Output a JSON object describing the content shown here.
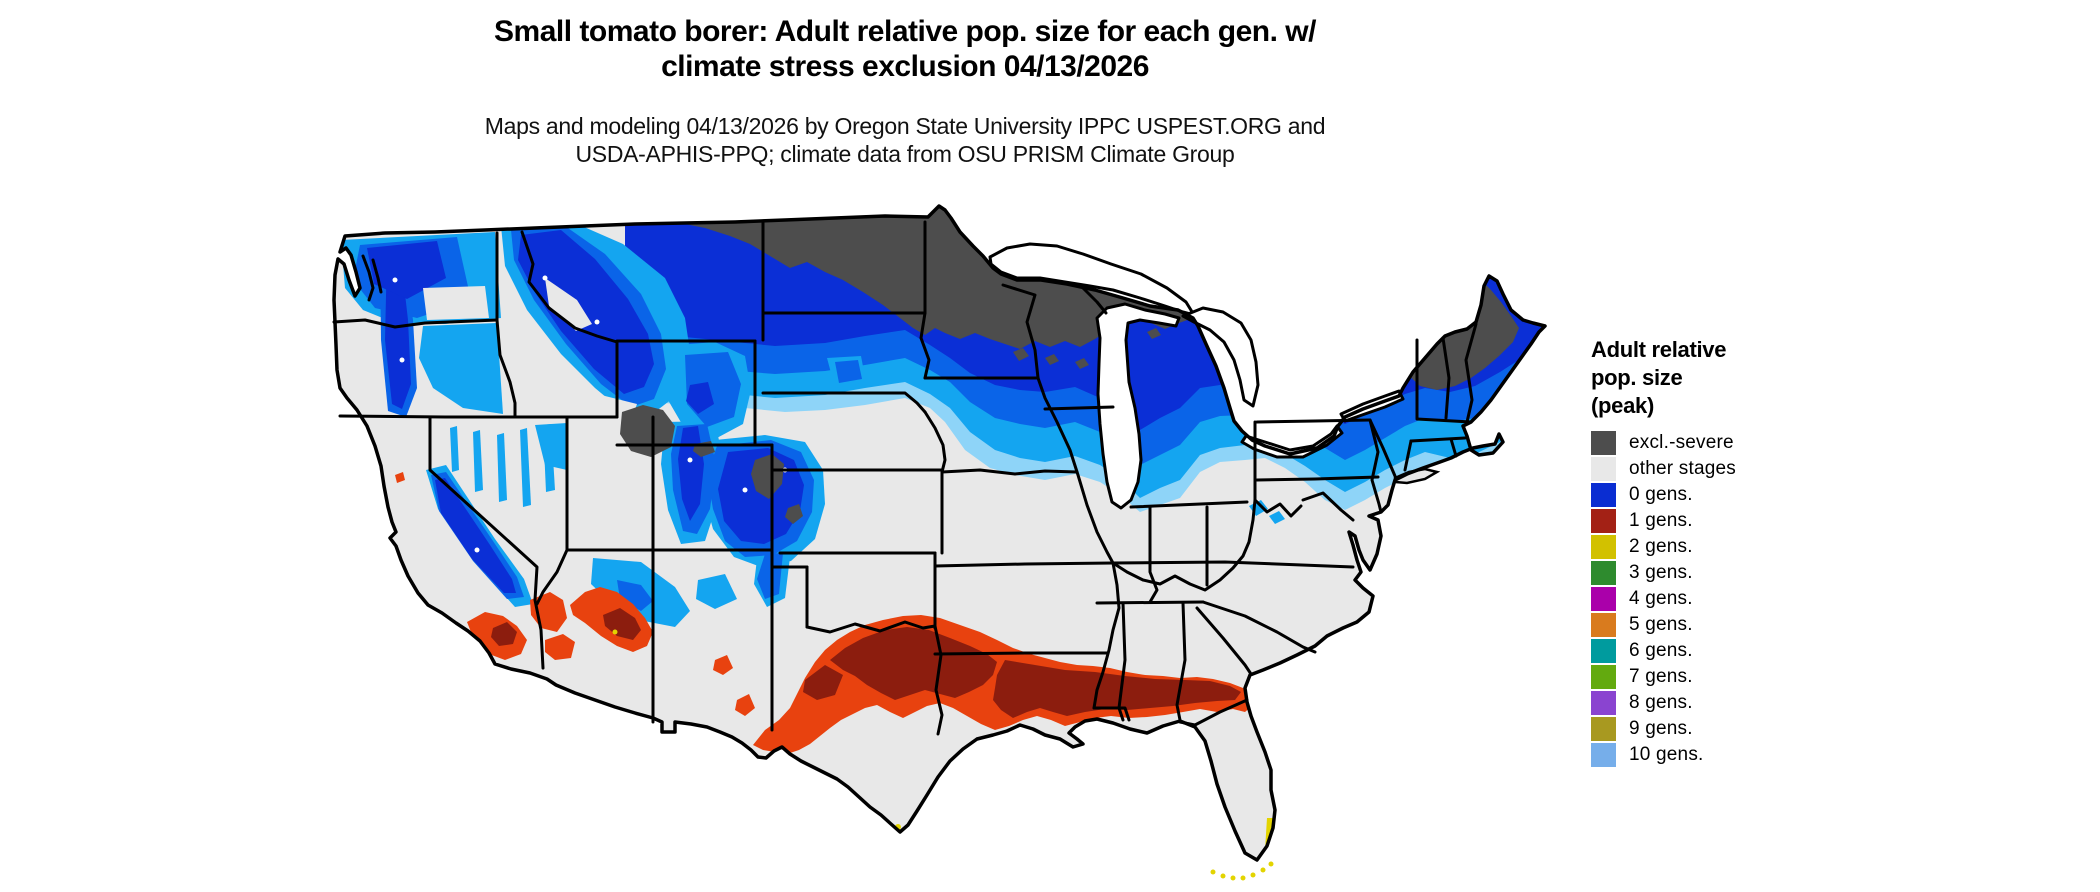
{
  "title": {
    "line1": "Small tomato borer: Adult relative pop. size for each gen. w/",
    "line2": "climate stress exclusion 04/13/2026"
  },
  "subtitle": {
    "line1": "Maps and modeling 04/13/2026 by Oregon State University IPPC USPEST.ORG and",
    "line2": "USDA-APHIS-PPQ; climate data from OSU PRISM Climate Group"
  },
  "legend": {
    "title_lines": [
      "Adult relative",
      "pop. size",
      "(peak)"
    ],
    "items": [
      {
        "label": "excl.-severe",
        "color_key": "excl_severe"
      },
      {
        "label": "other stages",
        "color_key": "other_stages"
      },
      {
        "label": "0 gens.",
        "color_key": "gen0_blue"
      },
      {
        "label": "1 gens.",
        "color_key": "gen1_red"
      },
      {
        "label": "2 gens.",
        "color_key": "gen2_yellow"
      },
      {
        "label": "3 gens.",
        "color_key": "gen3_green"
      },
      {
        "label": "4 gens.",
        "color_key": "gen4_magenta"
      },
      {
        "label": "5 gens.",
        "color_key": "gen5_orange"
      },
      {
        "label": "6 gens.",
        "color_key": "gen6_teal"
      },
      {
        "label": "7 gens.",
        "color_key": "gen7_yellowgreen"
      },
      {
        "label": "8 gens.",
        "color_key": "gen8_purple"
      },
      {
        "label": "9 gens.",
        "color_key": "gen9_olive"
      },
      {
        "label": "10 gens.",
        "color_key": "gen10_lightblue"
      }
    ]
  },
  "map": {
    "depicts": "Contiguous United States pest generation map",
    "regions": [
      {
        "area": "northern tier (ND, MN, N WI, MI UP, Adirondacks NY, N New England)",
        "value": "excl.-severe"
      },
      {
        "area": "band south of excluded zone and western mountains",
        "value": "0 gens."
      },
      {
        "area": "central/southern Texas through Gulf states to Georgia and coastal SC, S Arizona, S California",
        "value": "1 gens."
      },
      {
        "area": "southern tip of Florida, Florida Keys, S Texas tip",
        "value": "2 gens."
      },
      {
        "area": "remainder of the US",
        "value": "other stages"
      }
    ]
  },
  "colors": {
    "background": "#ffffff",
    "border": "#000000",
    "water": "#ffffff",
    "excl_severe": "#4d4d4d",
    "other_stages": "#e8e8e8",
    "gen0_blue": "#0a2dd2",
    "gen1_red": "#a32115",
    "gen2_yellow": "#d2c100",
    "gen3_green": "#2e8b2e",
    "gen4_magenta": "#aa00aa",
    "gen5_orange": "#d97b1e",
    "gen6_teal": "#009b9e",
    "gen7_yellowgreen": "#63aa0f",
    "gen8_purple": "#8a44d0",
    "gen9_olive": "#a89920",
    "gen10_lightblue": "#76aeea",
    "shade_navy": "#0b2fd6",
    "shade_blue": "#0a64e8",
    "shade_cyan": "#14a5f0",
    "shade_pale_cyan": "#8ed4f8",
    "shade_red_bright": "#e8420f",
    "shade_red_dark": "#8c1d0e",
    "shade_yellow": "#e3d400"
  }
}
